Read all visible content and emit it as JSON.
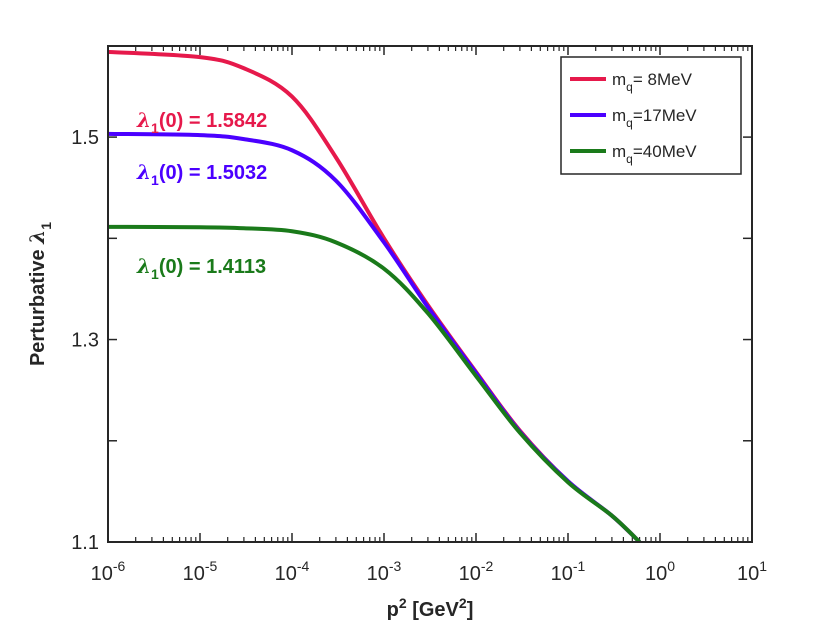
{
  "chart_data": {
    "type": "line",
    "x_scale": "log",
    "xlim_exp": [
      -6,
      1
    ],
    "ylim": [
      1.1,
      1.59
    ],
    "xlabel": {
      "base": "p",
      "sup": "2",
      "unit_pre": " [GeV",
      "unit_sup": "2",
      "unit_post": "]"
    },
    "ylabel": {
      "text": "Perturbative ",
      "symbol": "λ",
      "sub": "1"
    },
    "x_ticks": [
      {
        "exp": -6,
        "base": "10",
        "sup": "-6"
      },
      {
        "exp": -5,
        "base": "10",
        "sup": "-5"
      },
      {
        "exp": -4,
        "base": "10",
        "sup": "-4"
      },
      {
        "exp": -3,
        "base": "10",
        "sup": "-3"
      },
      {
        "exp": -2,
        "base": "10",
        "sup": "-2"
      },
      {
        "exp": -1,
        "base": "10",
        "sup": "-1"
      },
      {
        "exp": 0,
        "base": "10",
        "sup": "0"
      },
      {
        "exp": 1,
        "base": "10",
        "sup": "1"
      }
    ],
    "y_ticks": [
      {
        "value": 1.1,
        "label": "1.1"
      },
      {
        "value": 1.3,
        "label": "1.3"
      },
      {
        "value": 1.5,
        "label": "1.5"
      }
    ],
    "y_minor_ticks": [
      1.2,
      1.4
    ],
    "series": [
      {
        "name": "m_q = 8MeV",
        "color": "#e6194b",
        "legend": {
          "base": "m",
          "sub": "q",
          "rest": "= 8MeV"
        },
        "annotation": {
          "symbol": "λ",
          "sub": "1",
          "rest": "(0) = 1.5842"
        },
        "points": [
          [
            1e-06,
            1.5842
          ],
          [
            1e-05,
            1.579
          ],
          [
            3e-05,
            1.568
          ],
          [
            0.0001,
            1.54
          ],
          [
            0.0003,
            1.48
          ],
          [
            0.001,
            1.4
          ],
          [
            0.003,
            1.334
          ],
          [
            0.01,
            1.268
          ],
          [
            0.03,
            1.21
          ],
          [
            0.1,
            1.16
          ],
          [
            0.3,
            1.126
          ],
          [
            0.6,
            1.1
          ]
        ]
      },
      {
        "name": "m_q = 17MeV",
        "color": "#4b00ff",
        "legend": {
          "base": "m",
          "sub": "q",
          "rest": "=17MeV"
        },
        "annotation": {
          "symbol": "λ",
          "sub": "1",
          "rest": "(0) = 1.5032"
        },
        "points": [
          [
            1e-06,
            1.5032
          ],
          [
            1e-05,
            1.502
          ],
          [
            3e-05,
            1.498
          ],
          [
            0.0001,
            1.487
          ],
          [
            0.0003,
            1.457
          ],
          [
            0.001,
            1.396
          ],
          [
            0.003,
            1.332
          ],
          [
            0.01,
            1.267
          ],
          [
            0.03,
            1.209
          ],
          [
            0.1,
            1.16
          ],
          [
            0.3,
            1.126
          ],
          [
            0.6,
            1.1
          ]
        ]
      },
      {
        "name": "m_q = 40MeV",
        "color": "#1a7a1a",
        "legend": {
          "base": "m",
          "sub": "q",
          "rest": "=40MeV"
        },
        "annotation": {
          "symbol": "λ",
          "sub": "1",
          "rest": "(0) = 1.4113"
        },
        "points": [
          [
            1e-06,
            1.4113
          ],
          [
            1e-05,
            1.411
          ],
          [
            3e-05,
            1.41
          ],
          [
            0.0001,
            1.407
          ],
          [
            0.0003,
            1.396
          ],
          [
            0.001,
            1.37
          ],
          [
            0.003,
            1.326
          ],
          [
            0.01,
            1.264
          ],
          [
            0.03,
            1.208
          ],
          [
            0.1,
            1.159
          ],
          [
            0.3,
            1.126
          ],
          [
            0.6,
            1.1
          ]
        ]
      }
    ]
  }
}
